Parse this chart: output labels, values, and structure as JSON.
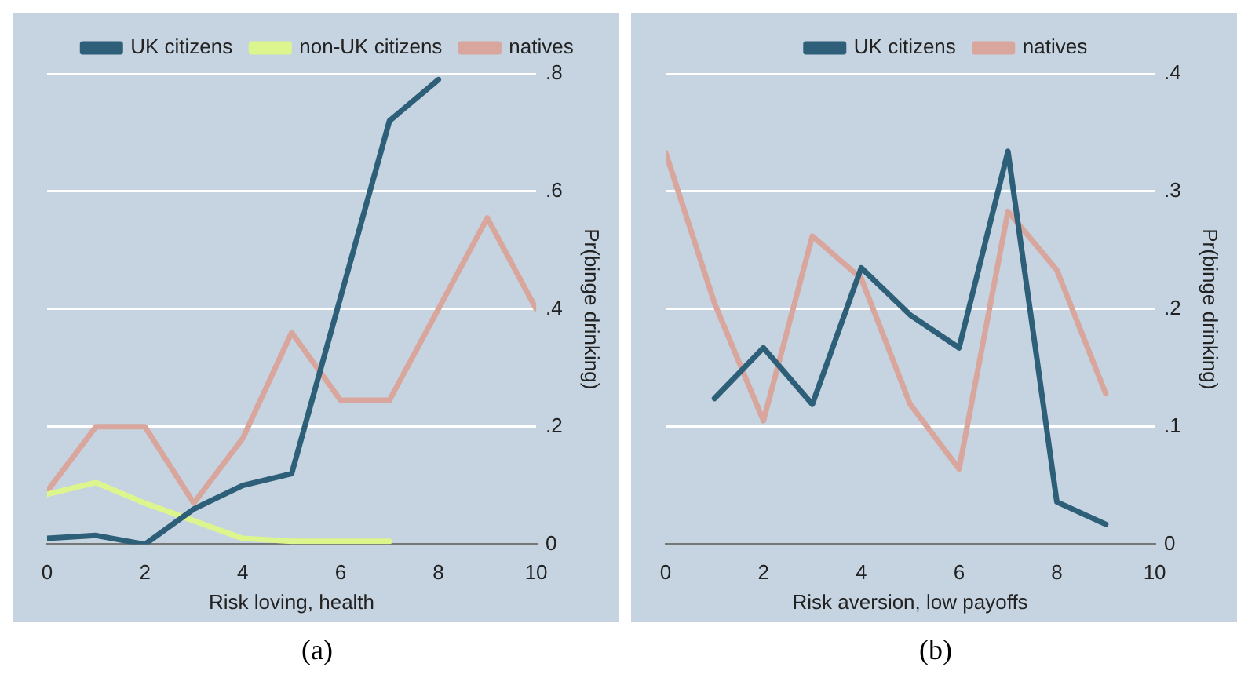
{
  "chart_data": [
    {
      "type": "line",
      "xlabel": "Risk loving, health",
      "ylabel": "Pr(binge drinking)",
      "xlim": [
        0,
        10
      ],
      "xticks": [
        0,
        2,
        4,
        6,
        8,
        10
      ],
      "ylim": [
        0,
        0.8
      ],
      "yticks": [
        {
          "value": 0,
          "label": "0"
        },
        {
          "value": 0.2,
          "label": ".2"
        },
        {
          "value": 0.4,
          "label": ".4"
        },
        {
          "value": 0.6,
          "label": ".6"
        },
        {
          "value": 0.8,
          "label": ".8"
        }
      ],
      "grid": "y",
      "legend": "top",
      "marker": "none",
      "line_style": "solid",
      "annotations": [
        "(a)"
      ],
      "series": [
        {
          "name": "UK citizens",
          "color": "#2e5f78",
          "x": [
            0,
            1,
            2,
            3,
            4,
            5,
            6,
            7,
            8
          ],
          "values": [
            0.01,
            0.015,
            0,
            0.06,
            0.1,
            0.12,
            0.42,
            0.72,
            0.79
          ]
        },
        {
          "name": "non-UK citizens",
          "color": "#dcf58c",
          "x": [
            0,
            1,
            2,
            3,
            4,
            5,
            6,
            7
          ],
          "values": [
            0.085,
            0.105,
            0.07,
            0.04,
            0.01,
            0.005,
            0.005,
            0.005
          ]
        },
        {
          "name": "natives",
          "color": "#d8a69c",
          "x": [
            0,
            1,
            2,
            3,
            4,
            5,
            6,
            7,
            8,
            9,
            10
          ],
          "values": [
            0.09,
            0.2,
            0.2,
            0.07,
            0.18,
            0.36,
            0.245,
            0.245,
            0.4,
            0.555,
            0.4
          ]
        }
      ]
    },
    {
      "type": "line",
      "xlabel": "Risk aversion, low payoffs",
      "ylabel": "Pr(binge drinking)",
      "xlim": [
        0,
        10
      ],
      "xticks": [
        0,
        2,
        4,
        6,
        8,
        10
      ],
      "ylim": [
        0,
        0.4
      ],
      "yticks": [
        {
          "value": 0,
          "label": "0"
        },
        {
          "value": 0.1,
          "label": ".1"
        },
        {
          "value": 0.2,
          "label": ".2"
        },
        {
          "value": 0.3,
          "label": ".3"
        },
        {
          "value": 0.4,
          "label": ".4"
        }
      ],
      "grid": "y",
      "legend": "top",
      "marker": "none",
      "line_style": "solid",
      "annotations": [
        "(b)"
      ],
      "series": [
        {
          "name": "UK citizens",
          "color": "#2e5f78",
          "x": [
            1,
            2,
            3,
            4,
            5,
            6,
            7,
            8,
            9
          ],
          "values": [
            0.124,
            0.167,
            0.119,
            0.235,
            0.195,
            0.167,
            0.334,
            0.036,
            0.017
          ]
        },
        {
          "name": "natives",
          "color": "#d8a69c",
          "x": [
            0,
            1,
            2,
            3,
            4,
            5,
            6,
            7,
            8,
            9
          ],
          "values": [
            0.333,
            0.205,
            0.105,
            0.262,
            0.226,
            0.119,
            0.064,
            0.283,
            0.233,
            0.128
          ]
        }
      ]
    }
  ]
}
